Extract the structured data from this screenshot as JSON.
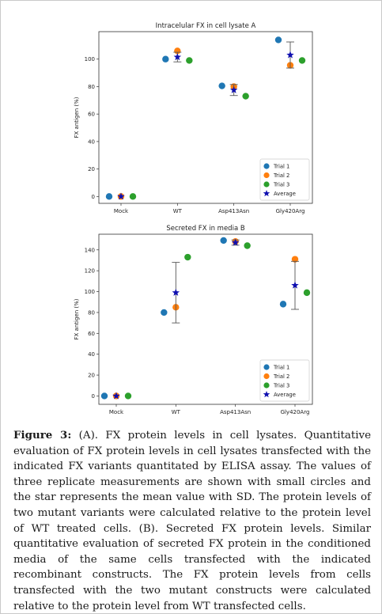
{
  "chart_data": [
    {
      "type": "scatter",
      "title": "Intracelular FX in cell lysate  A",
      "ylabel": "FX antigen (%)",
      "xlabel": "",
      "categories": [
        "Mock",
        "WT",
        "Asp413Asn",
        "Gly420Arg"
      ],
      "ylim": [
        -5,
        120
      ],
      "yticks": [
        0,
        20,
        40,
        60,
        80,
        100
      ],
      "grid": false,
      "legend": "bottom-right",
      "series": [
        {
          "name": "Trial 1",
          "color": "#1f77b4",
          "marker": "circle",
          "values": [
            0,
            100,
            80.5,
            114
          ]
        },
        {
          "name": "Trial 2",
          "color": "#ff7f0e",
          "marker": "circle",
          "values": [
            0,
            106,
            80,
            95.5
          ]
        },
        {
          "name": "Trial 3",
          "color": "#2ca02c",
          "marker": "circle",
          "values": [
            0,
            99,
            73,
            99
          ]
        },
        {
          "name": "Average",
          "color": "#1010b0",
          "marker": "star",
          "values": [
            0,
            101.5,
            77.5,
            103
          ],
          "sd": [
            0,
            3.5,
            4,
            9.5
          ]
        }
      ]
    },
    {
      "type": "scatter",
      "title": "Secreted FX in media  B",
      "ylabel": "FX antigen (%)",
      "xlabel": "",
      "categories": [
        "Mock",
        "WT",
        "Asp413Asn",
        "Gly420Arg"
      ],
      "ylim": [
        -8,
        155
      ],
      "yticks": [
        0,
        20,
        40,
        60,
        80,
        100,
        120,
        140
      ],
      "grid": false,
      "legend": "bottom-right",
      "series": [
        {
          "name": "Trial 1",
          "color": "#1f77b4",
          "marker": "circle",
          "values": [
            0,
            80,
            149,
            88
          ]
        },
        {
          "name": "Trial 2",
          "color": "#ff7f0e",
          "marker": "circle",
          "values": [
            0,
            85,
            148,
            131
          ]
        },
        {
          "name": "Trial 3",
          "color": "#2ca02c",
          "marker": "circle",
          "values": [
            0,
            133,
            144,
            99
          ]
        },
        {
          "name": "Average",
          "color": "#1010b0",
          "marker": "star",
          "values": [
            0,
            99,
            147,
            106
          ],
          "sd": [
            0,
            29,
            2.5,
            23
          ]
        }
      ]
    }
  ],
  "caption": {
    "label": "Figure 3:",
    "text": " (A). FX protein levels in cell lysates. Quantitative evaluation of FX protein levels in cell lysates transfected with the indicated FX variants quantitated by ELISA assay. The values of three replicate measurements are shown with small circles and the star represents the mean value with SD. The protein levels of two mutant variants were calculated relative to the protein level of WT treated cells. (B). Secreted FX protein levels. Similar quantitative evaluation of secreted FX protein in the conditioned media of the same cells transfected with the indicated recombinant constructs. The FX protein levels from cells transfected with the two mutant constructs were calculated relative to the protein level from WT transfected cells."
  }
}
